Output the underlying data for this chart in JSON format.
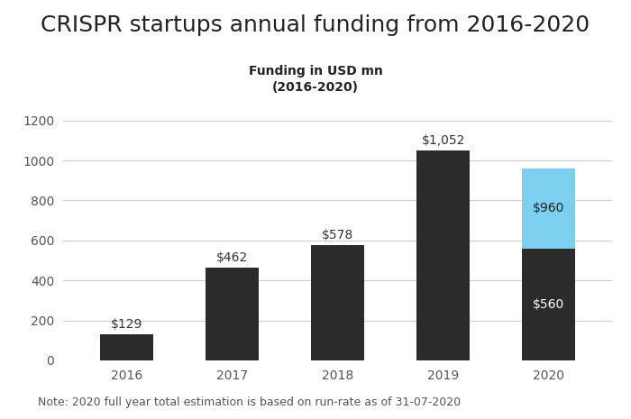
{
  "title": "CRISPR startups annual funding from 2016-2020",
  "subtitle_line1": "Funding in USD mn",
  "subtitle_line2": "(2016-2020)",
  "categories": [
    "2016",
    "2017",
    "2018",
    "2019",
    "2020"
  ],
  "dark_values": [
    129,
    462,
    578,
    1052,
    560
  ],
  "light_values": [
    0,
    0,
    0,
    0,
    400
  ],
  "bar_labels_dark": [
    "$129",
    "$462",
    "$578",
    "$1,052",
    "$560"
  ],
  "bar_labels_light": [
    "",
    "",
    "",
    "",
    "$960"
  ],
  "dark_color": "#2b2b2b",
  "light_color": "#7dcff0",
  "background_color": "#ffffff",
  "ylim": [
    0,
    1300
  ],
  "yticks": [
    0,
    200,
    400,
    600,
    800,
    1000,
    1200
  ],
  "note": "Note: 2020 full year total estimation is based on run-rate as of 31-07-2020",
  "title_fontsize": 18,
  "subtitle_fontsize": 10,
  "label_fontsize": 10,
  "tick_fontsize": 10,
  "note_fontsize": 9
}
